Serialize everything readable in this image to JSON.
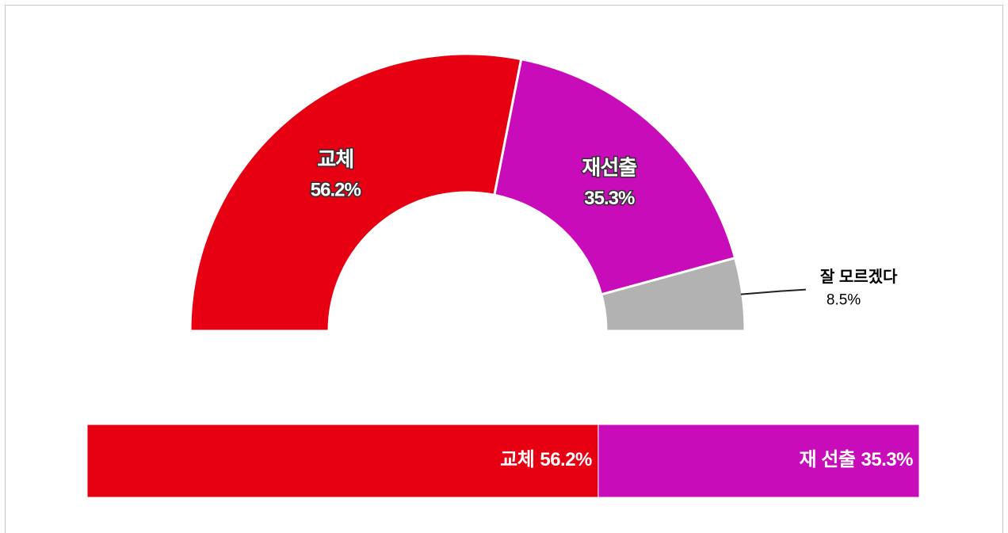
{
  "chart_data": [
    {
      "type": "pie",
      "half": true,
      "categories": [
        "교체",
        "재선출",
        "잘 모르겠다"
      ],
      "values": [
        56.2,
        35.3,
        8.5
      ],
      "value_labels": [
        "56.2%",
        "35.3%",
        "8.5%"
      ],
      "colors": [
        "#e60012",
        "#c90cba",
        "#b2b2b2"
      ]
    },
    {
      "type": "bar",
      "orientation": "horizontal",
      "stacked": true,
      "xlim": [
        0,
        91.5
      ],
      "series": [
        {
          "name": "교체",
          "color": "#e60012",
          "values": [
            56.2
          ],
          "value_labels": [
            "56.2%"
          ]
        },
        {
          "name": "재 선출",
          "color": "#c90cba",
          "values": [
            35.3
          ],
          "value_labels": [
            "35.3%"
          ]
        }
      ]
    }
  ]
}
